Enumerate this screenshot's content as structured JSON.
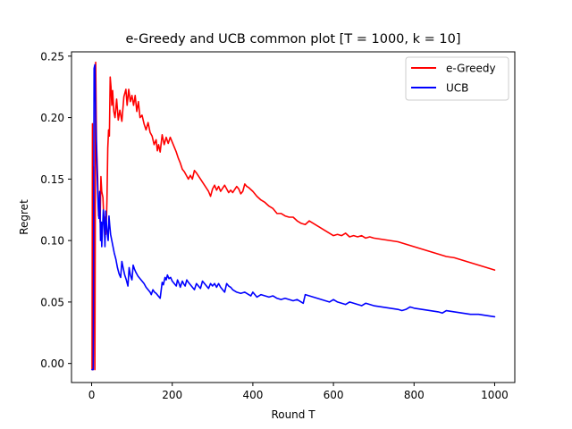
{
  "chart_data": {
    "type": "line",
    "title": "e-Greedy and UCB common plot [T = 1000, k = 10]",
    "xlabel": "Round T",
    "ylabel": "Regret",
    "xlim": [
      -50,
      1050
    ],
    "ylim": [
      -0.0155,
      0.2535
    ],
    "xticks": [
      0,
      200,
      400,
      600,
      800,
      1000
    ],
    "yticks": [
      0.0,
      0.05,
      0.1,
      0.15,
      0.2,
      0.25
    ],
    "xtick_labels": [
      "0",
      "200",
      "400",
      "600",
      "800",
      "1000"
    ],
    "ytick_labels": [
      "0.00",
      "0.05",
      "0.10",
      "0.15",
      "0.20",
      "0.25"
    ],
    "grid": false,
    "legend_position": "top-right",
    "series": [
      {
        "name": "e-Greedy",
        "color": "#ff0000",
        "points": [
          [
            1,
            -0.005
          ],
          [
            2,
            0.195
          ],
          [
            3,
            -0.005
          ],
          [
            5,
            0.16
          ],
          [
            8,
            -0.005
          ],
          [
            10,
            0.245
          ],
          [
            12,
            0.18
          ],
          [
            15,
            0.15
          ],
          [
            17,
            0.12
          ],
          [
            19,
            0.125
          ],
          [
            21,
            0.115
          ],
          [
            23,
            0.152
          ],
          [
            25,
            0.14
          ],
          [
            28,
            0.135
          ],
          [
            30,
            0.12
          ],
          [
            33,
            0.118
          ],
          [
            35,
            0.105
          ],
          [
            37,
            0.12
          ],
          [
            38,
            0.133
          ],
          [
            40,
            0.175
          ],
          [
            42,
            0.19
          ],
          [
            44,
            0.185
          ],
          [
            46,
            0.233
          ],
          [
            48,
            0.225
          ],
          [
            50,
            0.21
          ],
          [
            52,
            0.222
          ],
          [
            55,
            0.205
          ],
          [
            58,
            0.2
          ],
          [
            62,
            0.215
          ],
          [
            66,
            0.198
          ],
          [
            70,
            0.206
          ],
          [
            75,
            0.197
          ],
          [
            80,
            0.217
          ],
          [
            85,
            0.223
          ],
          [
            88,
            0.21
          ],
          [
            92,
            0.223
          ],
          [
            96,
            0.213
          ],
          [
            100,
            0.218
          ],
          [
            104,
            0.21
          ],
          [
            108,
            0.218
          ],
          [
            112,
            0.205
          ],
          [
            116,
            0.213
          ],
          [
            120,
            0.2
          ],
          [
            125,
            0.202
          ],
          [
            130,
            0.195
          ],
          [
            135,
            0.19
          ],
          [
            140,
            0.196
          ],
          [
            145,
            0.188
          ],
          [
            150,
            0.185
          ],
          [
            155,
            0.178
          ],
          [
            160,
            0.182
          ],
          [
            163,
            0.173
          ],
          [
            166,
            0.178
          ],
          [
            170,
            0.172
          ],
          [
            175,
            0.186
          ],
          [
            180,
            0.178
          ],
          [
            185,
            0.184
          ],
          [
            190,
            0.179
          ],
          [
            195,
            0.184
          ],
          [
            200,
            0.18
          ],
          [
            205,
            0.176
          ],
          [
            210,
            0.172
          ],
          [
            215,
            0.167
          ],
          [
            220,
            0.163
          ],
          [
            225,
            0.158
          ],
          [
            230,
            0.156
          ],
          [
            235,
            0.153
          ],
          [
            240,
            0.15
          ],
          [
            245,
            0.153
          ],
          [
            250,
            0.15
          ],
          [
            255,
            0.157
          ],
          [
            260,
            0.155
          ],
          [
            270,
            0.15
          ],
          [
            280,
            0.145
          ],
          [
            290,
            0.14
          ],
          [
            295,
            0.136
          ],
          [
            300,
            0.142
          ],
          [
            305,
            0.145
          ],
          [
            310,
            0.141
          ],
          [
            315,
            0.144
          ],
          [
            320,
            0.14
          ],
          [
            330,
            0.145
          ],
          [
            335,
            0.142
          ],
          [
            340,
            0.139
          ],
          [
            345,
            0.141
          ],
          [
            350,
            0.139
          ],
          [
            360,
            0.144
          ],
          [
            365,
            0.142
          ],
          [
            370,
            0.138
          ],
          [
            375,
            0.14
          ],
          [
            380,
            0.146
          ],
          [
            385,
            0.144
          ],
          [
            390,
            0.143
          ],
          [
            400,
            0.14
          ],
          [
            410,
            0.136
          ],
          [
            420,
            0.133
          ],
          [
            430,
            0.131
          ],
          [
            440,
            0.128
          ],
          [
            450,
            0.126
          ],
          [
            460,
            0.122
          ],
          [
            470,
            0.122
          ],
          [
            480,
            0.12
          ],
          [
            490,
            0.119
          ],
          [
            500,
            0.119
          ],
          [
            510,
            0.116
          ],
          [
            520,
            0.114
          ],
          [
            530,
            0.113
          ],
          [
            540,
            0.116
          ],
          [
            550,
            0.114
          ],
          [
            560,
            0.112
          ],
          [
            570,
            0.11
          ],
          [
            580,
            0.108
          ],
          [
            590,
            0.106
          ],
          [
            600,
            0.104
          ],
          [
            610,
            0.105
          ],
          [
            620,
            0.104
          ],
          [
            630,
            0.106
          ],
          [
            640,
            0.103
          ],
          [
            650,
            0.104
          ],
          [
            660,
            0.103
          ],
          [
            670,
            0.104
          ],
          [
            680,
            0.102
          ],
          [
            690,
            0.103
          ],
          [
            700,
            0.102
          ],
          [
            720,
            0.101
          ],
          [
            740,
            0.1
          ],
          [
            760,
            0.099
          ],
          [
            780,
            0.097
          ],
          [
            800,
            0.095
          ],
          [
            820,
            0.093
          ],
          [
            840,
            0.091
          ],
          [
            860,
            0.089
          ],
          [
            880,
            0.087
          ],
          [
            900,
            0.086
          ],
          [
            920,
            0.084
          ],
          [
            940,
            0.082
          ],
          [
            960,
            0.08
          ],
          [
            980,
            0.078
          ],
          [
            1000,
            0.076
          ]
        ]
      },
      {
        "name": "UCB",
        "color": "#0000ff",
        "points": [
          [
            1,
            -0.005
          ],
          [
            4,
            -0.005
          ],
          [
            6,
            0.24
          ],
          [
            8,
            0.243
          ],
          [
            10,
            0.2
          ],
          [
            12,
            0.175
          ],
          [
            14,
            0.15
          ],
          [
            16,
            0.13
          ],
          [
            18,
            0.118
          ],
          [
            20,
            0.14
          ],
          [
            22,
            0.1
          ],
          [
            24,
            0.115
          ],
          [
            25,
            0.095
          ],
          [
            27,
            0.11
          ],
          [
            29,
            0.125
          ],
          [
            31,
            0.115
          ],
          [
            33,
            0.095
          ],
          [
            35,
            0.124
          ],
          [
            37,
            0.113
          ],
          [
            39,
            0.105
          ],
          [
            41,
            0.1
          ],
          [
            43,
            0.12
          ],
          [
            45,
            0.112
          ],
          [
            47,
            0.105
          ],
          [
            50,
            0.1
          ],
          [
            53,
            0.095
          ],
          [
            56,
            0.09
          ],
          [
            60,
            0.085
          ],
          [
            64,
            0.078
          ],
          [
            68,
            0.073
          ],
          [
            72,
            0.07
          ],
          [
            75,
            0.083
          ],
          [
            78,
            0.078
          ],
          [
            82,
            0.072
          ],
          [
            86,
            0.068
          ],
          [
            90,
            0.063
          ],
          [
            93,
            0.078
          ],
          [
            96,
            0.072
          ],
          [
            100,
            0.068
          ],
          [
            103,
            0.08
          ],
          [
            106,
            0.077
          ],
          [
            110,
            0.074
          ],
          [
            115,
            0.071
          ],
          [
            120,
            0.069
          ],
          [
            125,
            0.067
          ],
          [
            130,
            0.065
          ],
          [
            135,
            0.062
          ],
          [
            140,
            0.06
          ],
          [
            145,
            0.058
          ],
          [
            148,
            0.056
          ],
          [
            152,
            0.06
          ],
          [
            156,
            0.058
          ],
          [
            160,
            0.057
          ],
          [
            165,
            0.055
          ],
          [
            170,
            0.053
          ],
          [
            175,
            0.066
          ],
          [
            178,
            0.064
          ],
          [
            182,
            0.07
          ],
          [
            185,
            0.068
          ],
          [
            188,
            0.072
          ],
          [
            192,
            0.069
          ],
          [
            196,
            0.07
          ],
          [
            200,
            0.067
          ],
          [
            205,
            0.065
          ],
          [
            210,
            0.063
          ],
          [
            213,
            0.068
          ],
          [
            217,
            0.065
          ],
          [
            220,
            0.062
          ],
          [
            225,
            0.067
          ],
          [
            228,
            0.065
          ],
          [
            232,
            0.063
          ],
          [
            236,
            0.068
          ],
          [
            240,
            0.066
          ],
          [
            245,
            0.064
          ],
          [
            250,
            0.062
          ],
          [
            255,
            0.06
          ],
          [
            260,
            0.065
          ],
          [
            265,
            0.063
          ],
          [
            270,
            0.061
          ],
          [
            275,
            0.067
          ],
          [
            280,
            0.065
          ],
          [
            285,
            0.063
          ],
          [
            290,
            0.061
          ],
          [
            295,
            0.065
          ],
          [
            300,
            0.063
          ],
          [
            305,
            0.065
          ],
          [
            310,
            0.062
          ],
          [
            315,
            0.065
          ],
          [
            320,
            0.062
          ],
          [
            325,
            0.06
          ],
          [
            330,
            0.058
          ],
          [
            335,
            0.065
          ],
          [
            340,
            0.063
          ],
          [
            345,
            0.062
          ],
          [
            350,
            0.06
          ],
          [
            355,
            0.059
          ],
          [
            360,
            0.058
          ],
          [
            370,
            0.057
          ],
          [
            380,
            0.058
          ],
          [
            390,
            0.056
          ],
          [
            395,
            0.055
          ],
          [
            400,
            0.058
          ],
          [
            405,
            0.056
          ],
          [
            410,
            0.054
          ],
          [
            420,
            0.056
          ],
          [
            430,
            0.055
          ],
          [
            440,
            0.054
          ],
          [
            450,
            0.055
          ],
          [
            460,
            0.053
          ],
          [
            470,
            0.052
          ],
          [
            480,
            0.053
          ],
          [
            490,
            0.052
          ],
          [
            500,
            0.051
          ],
          [
            510,
            0.052
          ],
          [
            520,
            0.05
          ],
          [
            525,
            0.049
          ],
          [
            530,
            0.056
          ],
          [
            540,
            0.055
          ],
          [
            550,
            0.054
          ],
          [
            560,
            0.053
          ],
          [
            570,
            0.052
          ],
          [
            580,
            0.051
          ],
          [
            590,
            0.05
          ],
          [
            600,
            0.052
          ],
          [
            610,
            0.05
          ],
          [
            620,
            0.049
          ],
          [
            630,
            0.048
          ],
          [
            640,
            0.05
          ],
          [
            650,
            0.049
          ],
          [
            660,
            0.048
          ],
          [
            670,
            0.047
          ],
          [
            680,
            0.049
          ],
          [
            690,
            0.048
          ],
          [
            700,
            0.047
          ],
          [
            720,
            0.046
          ],
          [
            740,
            0.045
          ],
          [
            760,
            0.044
          ],
          [
            770,
            0.043
          ],
          [
            780,
            0.044
          ],
          [
            790,
            0.046
          ],
          [
            800,
            0.045
          ],
          [
            820,
            0.044
          ],
          [
            840,
            0.043
          ],
          [
            860,
            0.042
          ],
          [
            870,
            0.041
          ],
          [
            880,
            0.043
          ],
          [
            900,
            0.042
          ],
          [
            920,
            0.041
          ],
          [
            940,
            0.04
          ],
          [
            960,
            0.04
          ],
          [
            980,
            0.039
          ],
          [
            1000,
            0.038
          ]
        ]
      }
    ]
  }
}
